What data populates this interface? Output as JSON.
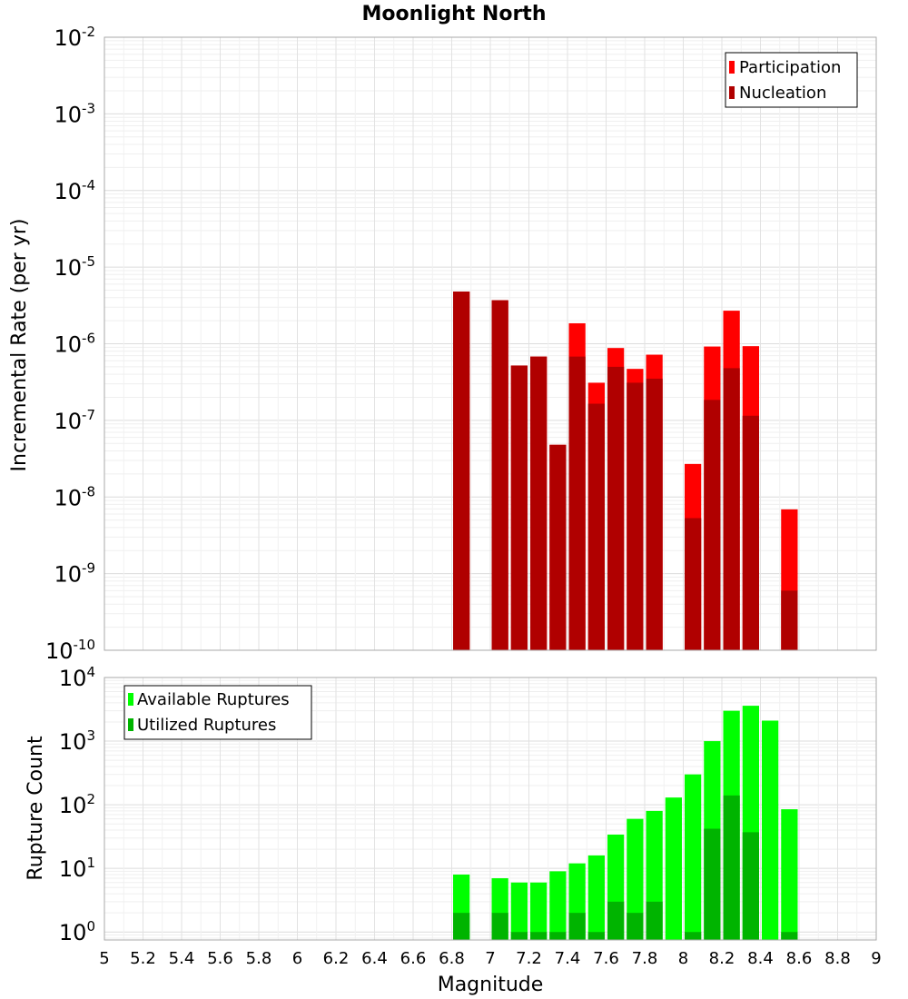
{
  "chart_data": [
    {
      "type": "bar",
      "title": "Moonlight North",
      "xlabel": "",
      "ylabel": "Incremental Rate (per yr)",
      "yscale": "log",
      "ylim": [
        1e-10,
        0.01
      ],
      "xlim": [
        5,
        9
      ],
      "grid": true,
      "legend_position": "top-right",
      "y_tick_labels": [
        {
          "base": "10",
          "exp": "-2"
        },
        {
          "base": "10",
          "exp": "-3"
        },
        {
          "base": "10",
          "exp": "-4"
        },
        {
          "base": "10",
          "exp": "-5"
        },
        {
          "base": "10",
          "exp": "-6"
        },
        {
          "base": "10",
          "exp": "-7"
        },
        {
          "base": "10",
          "exp": "-8"
        },
        {
          "base": "10",
          "exp": "-9"
        },
        {
          "base": "10",
          "exp": "-10"
        }
      ],
      "series": [
        {
          "name": "Participation",
          "color": "#ff0000",
          "x": [
            6.85,
            7.05,
            7.15,
            7.25,
            7.35,
            7.45,
            7.55,
            7.65,
            7.75,
            7.85,
            8.05,
            8.15,
            8.25,
            8.35,
            8.55
          ],
          "values": [
            4.8e-06,
            3.7e-06,
            5.2e-07,
            6.8e-07,
            4.8e-08,
            1.85e-06,
            3.1e-07,
            8.8e-07,
            4.7e-07,
            7.2e-07,
            2.7e-08,
            9.2e-07,
            2.7e-06,
            9.3e-07,
            6.9e-09
          ]
        },
        {
          "name": "Nucleation",
          "color": "#b00000",
          "x": [
            6.85,
            7.05,
            7.15,
            7.25,
            7.35,
            7.45,
            7.55,
            7.65,
            7.75,
            7.85,
            8.05,
            8.15,
            8.25,
            8.35,
            8.55
          ],
          "values": [
            4.8e-06,
            3.7e-06,
            5.2e-07,
            6.8e-07,
            4.8e-08,
            6.8e-07,
            1.65e-07,
            5e-07,
            3.1e-07,
            3.5e-07,
            5.3e-09,
            1.85e-07,
            4.8e-07,
            1.15e-07,
            6e-10
          ]
        }
      ]
    },
    {
      "type": "bar",
      "title": "",
      "xlabel": "Magnitude",
      "ylabel": "Rupture Count",
      "yscale": "log",
      "ylim": [
        0.75,
        10000
      ],
      "xlim": [
        5,
        9
      ],
      "grid": true,
      "legend_position": "top-left",
      "x_tick_labels": [
        "5",
        "5.2",
        "5.4",
        "5.6",
        "5.8",
        "6",
        "6.2",
        "6.4",
        "6.6",
        "6.8",
        "7",
        "7.2",
        "7.4",
        "7.6",
        "7.8",
        "8",
        "8.2",
        "8.4",
        "8.6",
        "8.8",
        "9"
      ],
      "y_tick_labels": [
        {
          "base": "10",
          "exp": "4"
        },
        {
          "base": "10",
          "exp": "3"
        },
        {
          "base": "10",
          "exp": "2"
        },
        {
          "base": "10",
          "exp": "1"
        },
        {
          "base": "10",
          "exp": "0"
        }
      ],
      "series": [
        {
          "name": "Available Ruptures",
          "color": "#00ff00",
          "x": [
            6.85,
            7.05,
            7.15,
            7.25,
            7.35,
            7.45,
            7.55,
            7.65,
            7.75,
            7.85,
            7.95,
            8.05,
            8.15,
            8.25,
            8.35,
            8.45,
            8.55
          ],
          "values": [
            8,
            7,
            6,
            6,
            9,
            12,
            16,
            34,
            60,
            80,
            130,
            300,
            1000,
            3000,
            3600,
            2100,
            85
          ]
        },
        {
          "name": "Utilized Ruptures",
          "color": "#00b400",
          "x": [
            6.85,
            7.05,
            7.15,
            7.25,
            7.35,
            7.45,
            7.55,
            7.65,
            7.75,
            7.85,
            7.95,
            8.05,
            8.15,
            8.25,
            8.35,
            8.45,
            8.55
          ],
          "values": [
            2,
            2,
            1,
            1,
            1,
            2,
            1,
            3,
            2,
            3,
            0,
            1,
            42,
            140,
            37,
            0,
            1
          ]
        }
      ]
    }
  ]
}
